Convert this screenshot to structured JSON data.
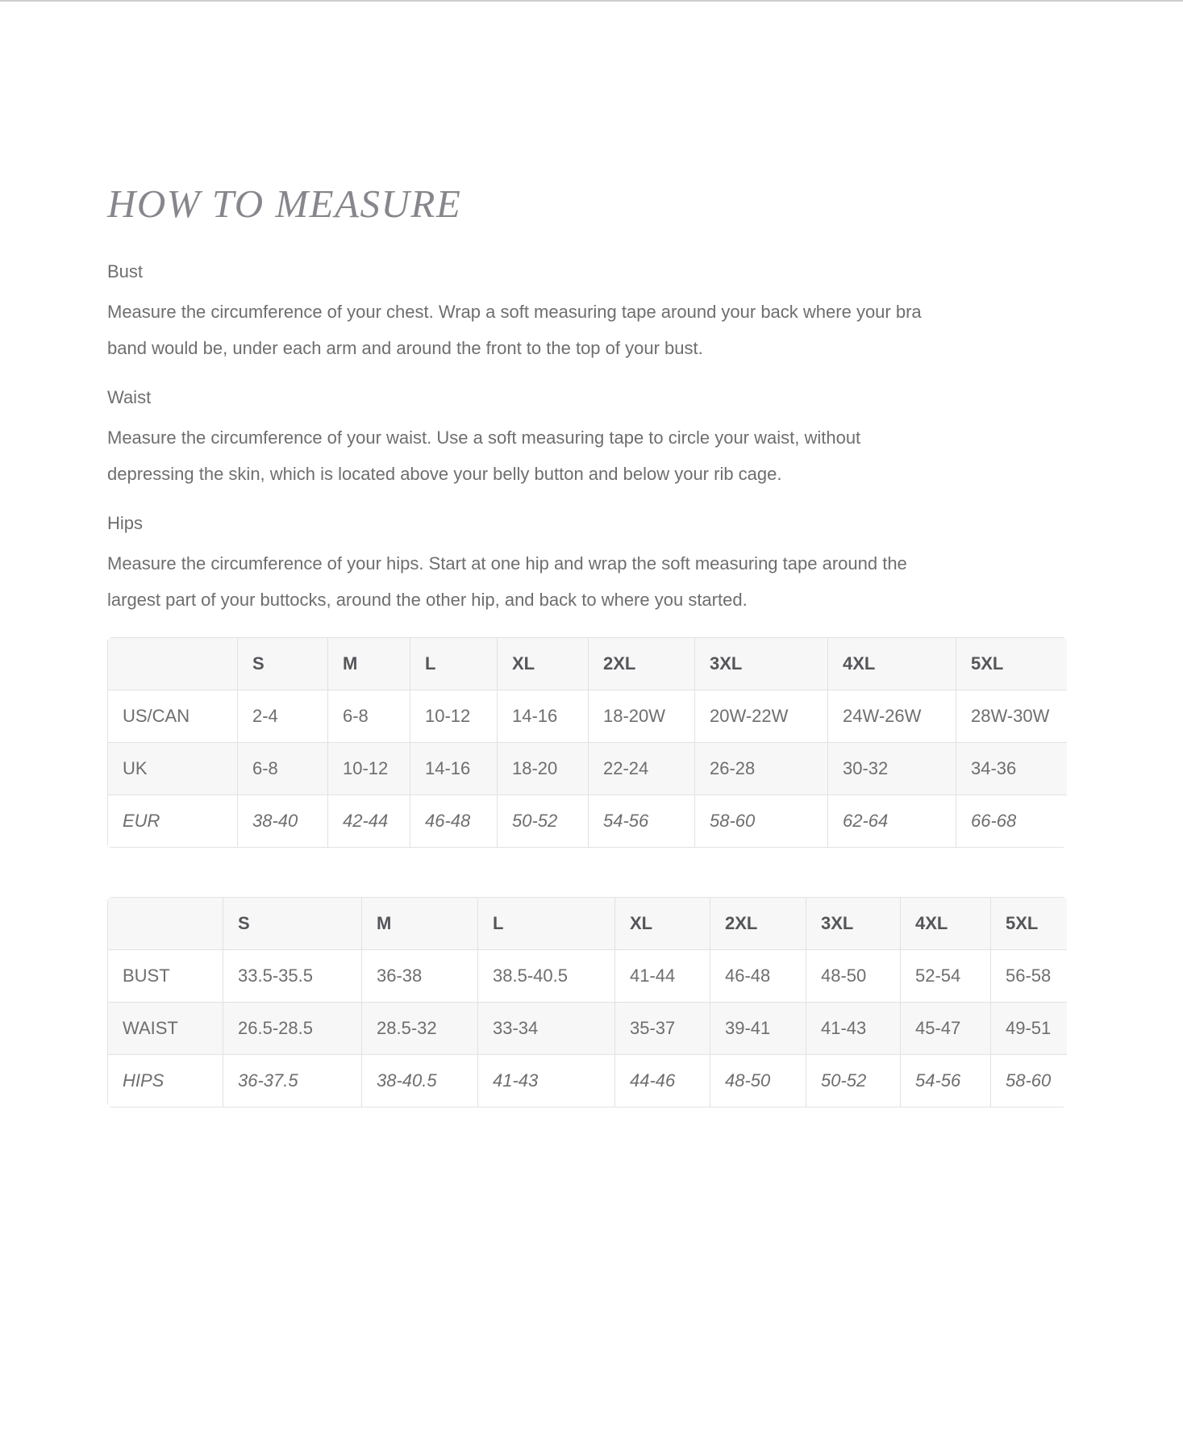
{
  "page_title": "HOW TO MEASURE",
  "sections": [
    {
      "heading": "Bust",
      "body": "Measure the circumference of your chest. Wrap a soft measuring tape around your back where your bra band would be, under each arm and around the front to the top of your bust."
    },
    {
      "heading": "Waist",
      "body": "Measure the circumference of your waist. Use a soft measuring tape to circle your waist, without depressing the skin, which is located above your belly button and below your rib cage."
    },
    {
      "heading": "Hips",
      "body": "Measure the circumference of your hips. Start at one hip and wrap the soft measuring tape around the largest part of your buttocks, around the other hip, and back to where you started."
    }
  ],
  "tables": {
    "size_conversion": {
      "columns": [
        "",
        "S",
        "M",
        "L",
        "XL",
        "2XL",
        "3XL",
        "4XL",
        "5XL"
      ],
      "rows": [
        {
          "label": "US/CAN",
          "italic": false,
          "values": [
            "2-4",
            "6-8",
            "10-12",
            "14-16",
            "18-20W",
            "20W-22W",
            "24W-26W",
            "28W-30W"
          ]
        },
        {
          "label": "UK",
          "italic": false,
          "values": [
            "6-8",
            "10-12",
            "14-16",
            "18-20",
            "22-24",
            "26-28",
            "30-32",
            "34-36"
          ]
        },
        {
          "label": "EUR",
          "italic": true,
          "values": [
            "38-40",
            "42-44",
            "46-48",
            "50-52",
            "54-56",
            "58-60",
            "62-64",
            "66-68"
          ]
        }
      ]
    },
    "body_measurements": {
      "columns": [
        "",
        "S",
        "M",
        "L",
        "XL",
        "2XL",
        "3XL",
        "4XL",
        "5XL"
      ],
      "rows": [
        {
          "label": "BUST",
          "italic": false,
          "values": [
            "33.5-35.5",
            "36-38",
            "38.5-40.5",
            "41-44",
            "46-48",
            "48-50",
            "52-54",
            "56-58"
          ]
        },
        {
          "label": "WAIST",
          "italic": false,
          "values": [
            "26.5-28.5",
            "28.5-32",
            "33-34",
            "35-37",
            "39-41",
            "41-43",
            "45-47",
            "49-51"
          ]
        },
        {
          "label": "HIPS",
          "italic": true,
          "values": [
            "36-37.5",
            "38-40.5",
            "41-43",
            "44-46",
            "48-50",
            "50-52",
            "54-56",
            "58-60"
          ]
        }
      ]
    }
  },
  "colors": {
    "body_text": "#6e6e6e",
    "title_text": "#86868c",
    "table_header_text": "#55565a",
    "table_shade_bg": "#f7f7f7",
    "table_border": "#e2e2e2",
    "top_rule": "#cecece"
  }
}
